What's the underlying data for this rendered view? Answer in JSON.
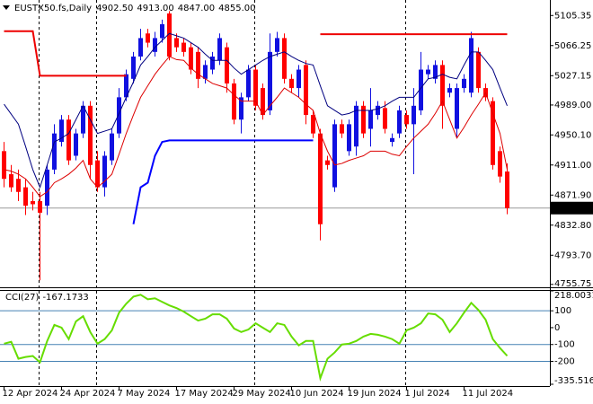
{
  "chart_data": [
    {
      "type": "candlestick",
      "title": "EUSTX50.fs,Daily",
      "header_values": [
        "4902.50",
        "4913.00",
        "4847.00",
        "4855.00"
      ],
      "categories": [
        "12 Apr 2024",
        null,
        null,
        null,
        null,
        null,
        null,
        null,
        "24 Apr 2024",
        null,
        null,
        null,
        null,
        null,
        null,
        null,
        "7 May 2024",
        null,
        null,
        null,
        null,
        null,
        null,
        null,
        "17 May 2024",
        null,
        null,
        null,
        null,
        null,
        null,
        null,
        "29 May 2024",
        null,
        null,
        null,
        null,
        null,
        null,
        null,
        "10 Jun 2024",
        null,
        null,
        null,
        null,
        null,
        null,
        null,
        "19 Jun 2024",
        null,
        null,
        null,
        null,
        null,
        null,
        null,
        "1 Jul 2024",
        null,
        null,
        null,
        null,
        null,
        null,
        null,
        "11 Jul 2024",
        null,
        null,
        null,
        null,
        null,
        null
      ],
      "open": [
        4929,
        4899,
        4893,
        4882,
        4864,
        4864,
        4858,
        4905,
        4941,
        4970,
        4923,
        4952,
        4988,
        4917,
        4882,
        4917,
        4952,
        4999,
        5023,
        5052,
        5082,
        5058,
        5076,
        5108,
        5076,
        5070,
        5064,
        5058,
        5023,
        5035,
        5047,
        5064,
        5017,
        4970,
        4999,
        5035,
        5011,
        4982,
        5058,
        5076,
        5023,
        5011,
        5041,
        4976,
        4952,
        4917,
        4882,
        4964,
        4929,
        4935,
        4988,
        4958,
        4976,
        4985,
        4941,
        4952,
        4976,
        4964,
        4982,
        5029,
        5023,
        5041,
        5005,
        4958,
        5011,
        5005,
        5058,
        5011,
        4994,
        4929,
        4902.5
      ],
      "high": [
        4941,
        4911,
        4905,
        4893,
        4876,
        4876,
        4911,
        4964,
        4976,
        4976,
        4958,
        4994,
        4994,
        4929,
        4929,
        4958,
        5011,
        5035,
        5058,
        5088,
        5088,
        5084,
        5100,
        5111,
        5082,
        5076,
        5070,
        5064,
        5047,
        5058,
        5082,
        5070,
        5023,
        5005,
        5041,
        5041,
        5017,
        5082,
        5084,
        5082,
        5029,
        5041,
        5047,
        4982,
        4958,
        4923,
        4970,
        4970,
        4970,
        4994,
        4994,
        5011,
        4994,
        4994,
        4952,
        4988,
        4982,
        5011,
        5058,
        5041,
        5047,
        5047,
        5017,
        5017,
        5029,
        5084,
        5064,
        5017,
        4999,
        4935,
        4913
      ],
      "low": [
        4882,
        4876,
        4864,
        4846,
        4852,
        4761,
        4846,
        4899,
        4935,
        4911,
        4917,
        4946,
        4893,
        4876,
        4870,
        4911,
        4946,
        4994,
        5017,
        5047,
        5064,
        5052,
        5070,
        5047,
        5058,
        5052,
        5029,
        5011,
        5017,
        5029,
        5041,
        5005,
        4964,
        4952,
        4994,
        4982,
        4970,
        4976,
        5052,
        5017,
        5005,
        4999,
        4964,
        4946,
        4813,
        4905,
        4876,
        4946,
        4923,
        4923,
        4946,
        4935,
        4970,
        4952,
        4935,
        4946,
        4958,
        4899,
        4976,
        5023,
        5017,
        4958,
        4999,
        4946,
        5005,
        4999,
        5005,
        4994,
        4905,
        4888,
        4847
      ],
      "close": [
        4893,
        4882,
        4876,
        4858,
        4860,
        4849,
        4905,
        4952,
        4970,
        4917,
        4952,
        4988,
        4911,
        4882,
        4923,
        4952,
        4999,
        5029,
        5052,
        5076,
        5070,
        5076,
        5094,
        5052,
        5064,
        5058,
        5035,
        5023,
        5041,
        5052,
        5076,
        5017,
        4970,
        4999,
        5035,
        4988,
        4976,
        5058,
        5076,
        5023,
        5011,
        5035,
        4976,
        4952,
        4834,
        4911,
        4964,
        4952,
        4964,
        4988,
        4952,
        4982,
        4988,
        4958,
        4946,
        4982,
        4964,
        4988,
        5035,
        5035,
        5041,
        4988,
        5011,
        5011,
        5023,
        5076,
        5011,
        4999,
        4911,
        4896,
        4855
      ],
      "up_color": "#1010e0",
      "down_color": "#ff0000",
      "series": [
        {
          "color": "#000080",
          "line_width": 1,
          "values": [
            4990,
            4977,
            4964,
            4935,
            4905,
            4882,
            4911,
            4941,
            4946,
            4952,
            4970,
            4988,
            4970,
            4952,
            4955,
            4958,
            4978,
            4999,
            5019,
            5041,
            5052,
            5064,
            5073,
            5082,
            5079,
            5076,
            5070,
            5064,
            5055,
            5047,
            5047,
            5047,
            5037,
            5029,
            5035,
            5041,
            5047,
            5052,
            5055,
            5058,
            5052,
            5047,
            5043,
            5041,
            5014,
            4988,
            4982,
            4976,
            4978,
            4982,
            4982,
            4982,
            4984,
            4988,
            4994,
            4999,
            4999,
            4999,
            5011,
            5023,
            5025,
            5029,
            5025,
            5023,
            5041,
            5058,
            5058,
            5047,
            5035,
            5011,
            4988
          ]
        },
        {
          "color": "#dd0000",
          "line_width": 1,
          "values": [
            4905,
            4903,
            4899,
            4893,
            4882,
            4870,
            4876,
            4888,
            4893,
            4899,
            4907,
            4917,
            4893,
            4882,
            4890,
            4899,
            4925,
            4952,
            4976,
            4999,
            5014,
            5029,
            5041,
            5052,
            5048,
            5047,
            5037,
            5029,
            5023,
            5017,
            5014,
            5011,
            5002,
            4994,
            4994,
            4994,
            4976,
            4988,
            4999,
            5011,
            5005,
            4999,
            4990,
            4982,
            4952,
            4929,
            4911,
            4913,
            4917,
            4920,
            4923,
            4929,
            4929,
            4929,
            4925,
            4923,
            4935,
            4946,
            4955,
            4964,
            4978,
            4994,
            4970,
            4946,
            4960,
            4976,
            4990,
            5005,
            4978,
            4952,
            4905
          ]
        },
        {
          "color": "#ee0000",
          "line_width": 2,
          "values": [
            5085,
            5085,
            5085,
            5085,
            5085,
            5027,
            5027,
            5027,
            5027,
            5027,
            5027,
            5027,
            5027,
            5027,
            5027,
            5027,
            5027,
            5027,
            null,
            null,
            null,
            null,
            null,
            null,
            null,
            null,
            null,
            null,
            null,
            null,
            null,
            null,
            null,
            null,
            null,
            null,
            null,
            null,
            null,
            null,
            null,
            null,
            null,
            null,
            5081,
            5081,
            5081,
            5081,
            5081,
            5081,
            5081,
            5081,
            5081,
            5081,
            5081,
            5081,
            5081,
            5081,
            5081,
            5081,
            5081,
            5081,
            5081,
            5081,
            5081,
            5081,
            5081,
            5081,
            5081,
            5081,
            5081
          ]
        },
        {
          "color": "#0000ff",
          "line_width": 2,
          "values": [
            null,
            null,
            null,
            null,
            null,
            null,
            null,
            null,
            null,
            null,
            null,
            null,
            null,
            null,
            null,
            null,
            null,
            null,
            4834,
            4882,
            4888,
            4923,
            4941,
            4943,
            4943,
            4943,
            4943,
            4943,
            4943,
            4943,
            4943,
            4943,
            4943,
            4943,
            4943,
            4943,
            4943,
            4943,
            4943,
            4943,
            4943,
            4943,
            4943,
            4943,
            null,
            null,
            null,
            null,
            null,
            null,
            null,
            null,
            null,
            null,
            null,
            null,
            null,
            null,
            null,
            null,
            null,
            null,
            null,
            null,
            null,
            null,
            null,
            null,
            null,
            null,
            null
          ]
        }
      ],
      "ylim": [
        4752,
        5125.5
      ],
      "yticks": [
        5105.35,
        5066.25,
        5027.15,
        {
          "value": 4989,
          "label": "4989.00"
        },
        {
          "value": 4950.1,
          "label": "4950.10"
        },
        {
          "value": 4911,
          "label": "4911.00"
        },
        {
          "value": 4871.9,
          "label": "4871.90"
        },
        {
          "value": 4832.8,
          "label": "4832.80"
        },
        {
          "value": 4793.7,
          "label": "4793.70"
        },
        4755.75
      ],
      "last_price": {
        "value": 4855,
        "label": "4855.00"
      }
    },
    {
      "type": "line",
      "title": "CCI(27)",
      "color": "#66dd00",
      "values": [
        -95,
        -84,
        -184,
        -174,
        -168,
        -205,
        -79,
        16,
        0,
        -68,
        37,
        68,
        -26,
        -95,
        -68,
        -16,
        89,
        142,
        184,
        195,
        168,
        174,
        153,
        132,
        116,
        95,
        68,
        42,
        53,
        79,
        79,
        53,
        -5,
        -26,
        -11,
        26,
        0,
        -26,
        26,
        16,
        -53,
        -105,
        -79,
        -79,
        -300,
        -184,
        -147,
        -100,
        -95,
        -79,
        -53,
        -37,
        -42,
        -53,
        -68,
        -95,
        -16,
        0,
        26,
        84,
        79,
        47,
        -26,
        26,
        89,
        147,
        105,
        47,
        -68,
        -121,
        -167.1733
      ],
      "ylim": [
        -335.5161,
        218.0031
      ],
      "yticks": [
        218.0031,
        100,
        0,
        -100,
        -200,
        -335.5161
      ],
      "levels": [
        100,
        -100,
        -200
      ],
      "level_color": "#4682b4"
    }
  ]
}
